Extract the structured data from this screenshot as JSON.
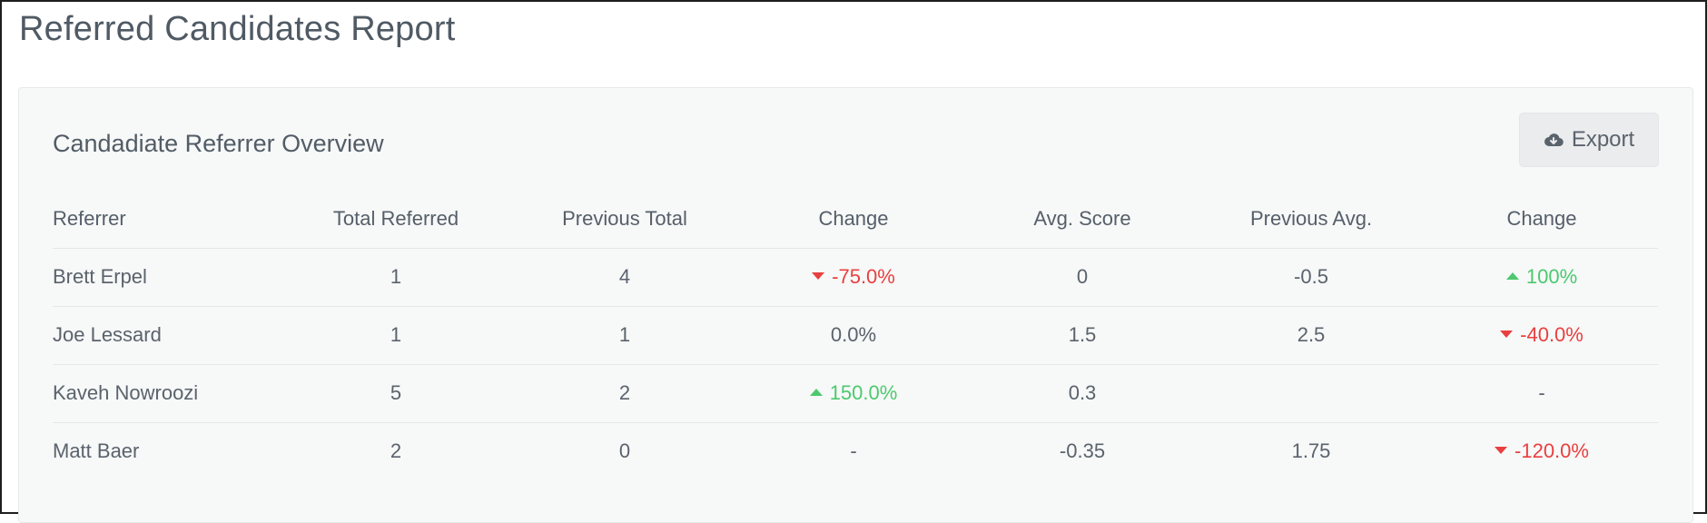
{
  "page": {
    "title": "Referred Candidates Report"
  },
  "panel": {
    "title": "Candadiate Referrer Overview",
    "export_label": "Export",
    "export_icon": "cloud-download-icon"
  },
  "table": {
    "headers": [
      "Referrer",
      "Total Referred",
      "Previous Total",
      "Change",
      "Avg. Score",
      "Previous Avg.",
      "Change"
    ],
    "rows": [
      {
        "referrer": "Brett Erpel",
        "total_referred": "1",
        "previous_total": "4",
        "change": "-75.0%",
        "change_dir": "down",
        "avg_score": "0",
        "previous_avg": "-0.5",
        "avg_change": "100%",
        "avg_change_dir": "up"
      },
      {
        "referrer": "Joe Lessard",
        "total_referred": "1",
        "previous_total": "1",
        "change": "0.0%",
        "change_dir": "none",
        "avg_score": "1.5",
        "previous_avg": "2.5",
        "avg_change": "-40.0%",
        "avg_change_dir": "down"
      },
      {
        "referrer": "Kaveh Nowroozi",
        "total_referred": "5",
        "previous_total": "2",
        "change": "150.0%",
        "change_dir": "up",
        "avg_score": "0.3",
        "previous_avg": "",
        "avg_change": "-",
        "avg_change_dir": "none"
      },
      {
        "referrer": "Matt Baer",
        "total_referred": "2",
        "previous_total": "0",
        "change": "-",
        "change_dir": "none",
        "avg_score": "-0.35",
        "previous_avg": "1.75",
        "avg_change": "-120.0%",
        "avg_change_dir": "down"
      }
    ]
  },
  "colors": {
    "positive": "#4cc96e",
    "negative": "#e8403f",
    "text": "#5a636c",
    "panel_bg": "#f7f8f8"
  }
}
